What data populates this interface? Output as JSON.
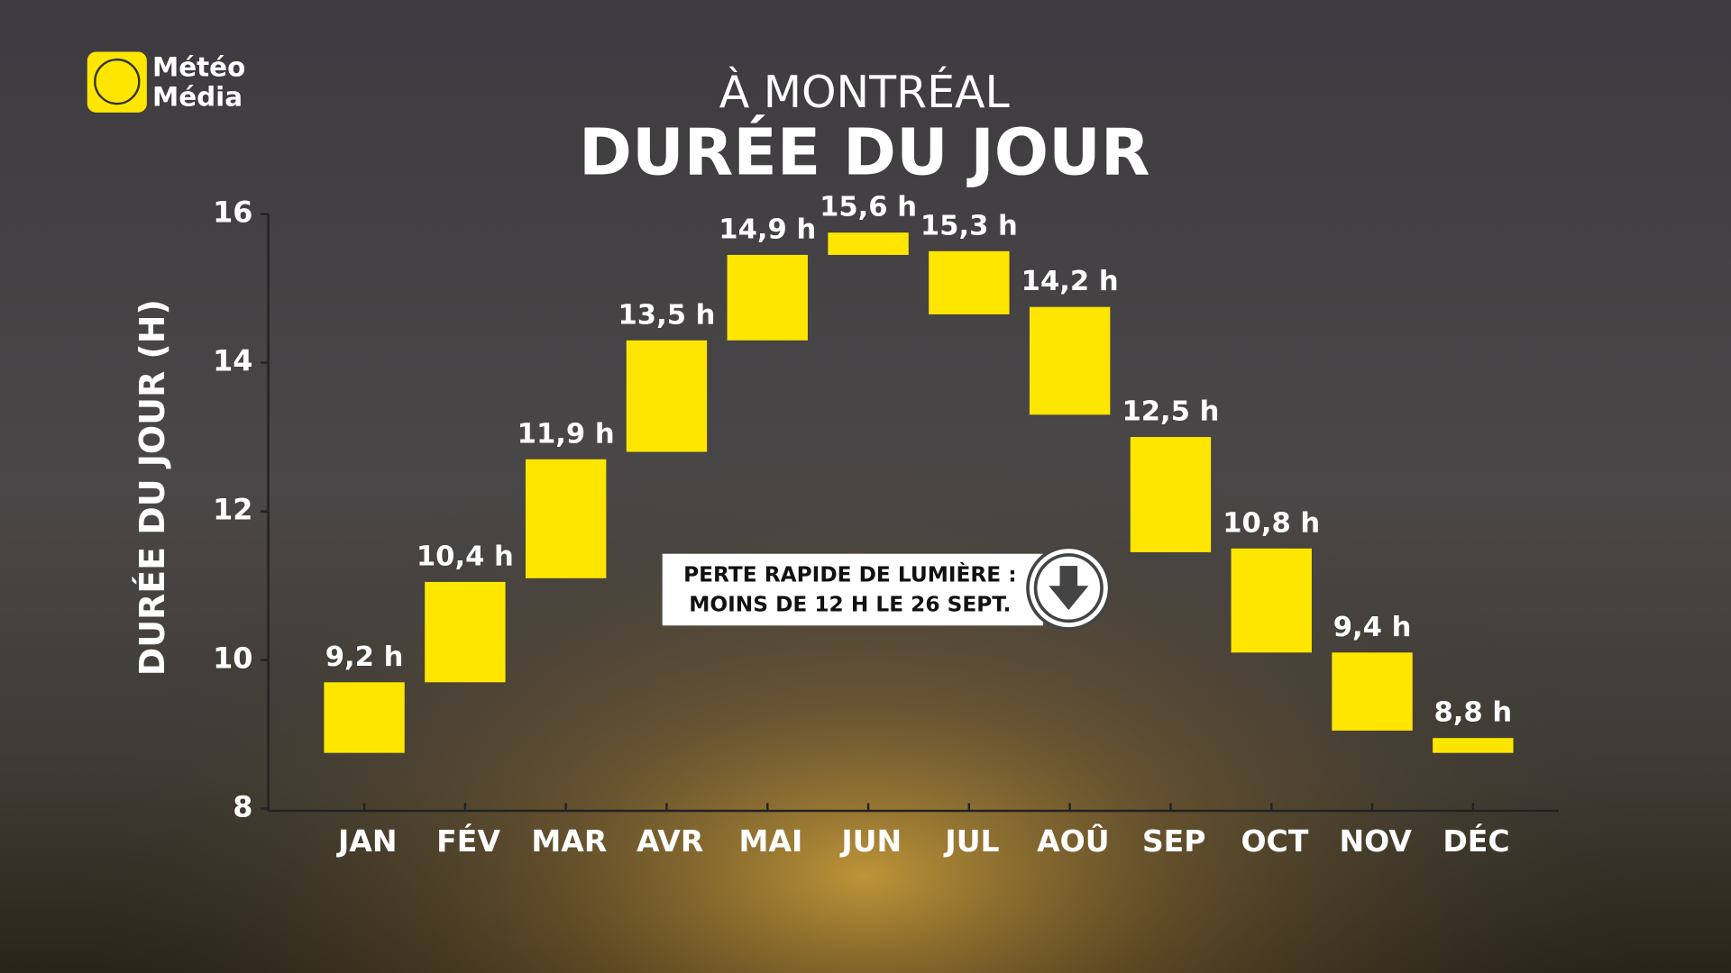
{
  "logo": {
    "line1": "Météo",
    "line2": "Média"
  },
  "chart_data": {
    "type": "range-bar",
    "subtitle": "À MONTRÉAL",
    "title": "DURÉE DU JOUR",
    "y_label": "DURÉE DU JOUR (H)",
    "categories": [
      "JAN",
      "FÉV",
      "MAR",
      "AVR",
      "MAI",
      "JUN",
      "JUL",
      "AOÛ",
      "SEP",
      "OCT",
      "NOV",
      "DÉC"
    ],
    "values": [
      9.2,
      10.4,
      11.9,
      13.5,
      14.9,
      15.6,
      15.3,
      14.2,
      12.5,
      10.8,
      9.4,
      8.8
    ],
    "value_labels": [
      "9,2 h",
      "10,4 h",
      "11,9 h",
      "13,5 h",
      "14,9 h",
      "15,6 h",
      "15,3 h",
      "14,2 h",
      "12,5 h",
      "10,8 h",
      "9,4 h",
      "8,8 h"
    ],
    "starts": [
      8.75,
      9.7,
      11.1,
      12.8,
      14.3,
      15.45,
      15.5,
      14.75,
      13.0,
      11.5,
      10.1,
      8.95
    ],
    "ends": [
      9.7,
      11.05,
      12.7,
      14.3,
      15.45,
      15.75,
      14.65,
      13.3,
      11.45,
      10.1,
      9.05,
      8.75
    ],
    "color": "#ffe600",
    "ylim": [
      8,
      16
    ],
    "yticks": [
      8,
      10,
      12,
      14,
      16
    ],
    "annotation": [
      "PERTE RAPIDE DE LUMIÈRE :",
      "MOINS DE 12 H LE 26 SEPT."
    ]
  }
}
